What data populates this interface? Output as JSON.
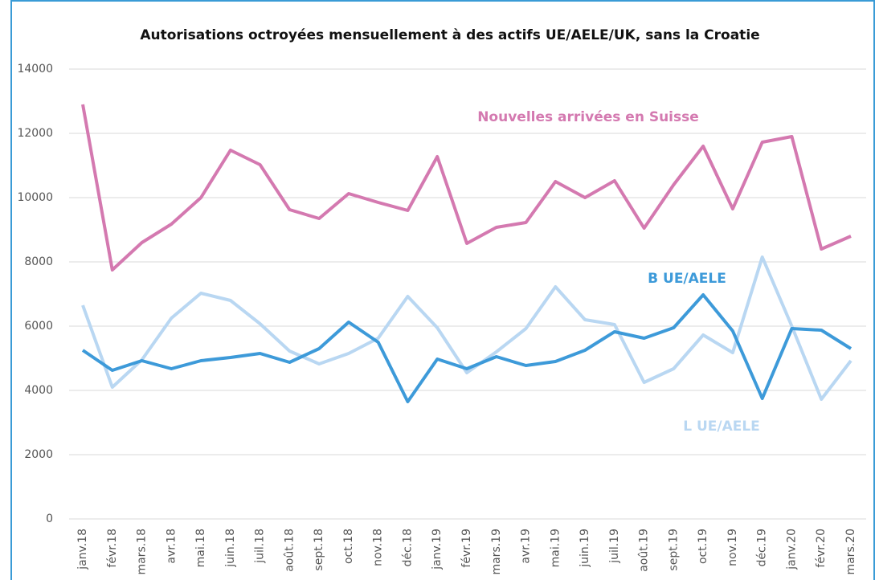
{
  "chart_data": {
    "type": "line",
    "title": "Autorisations octroyées mensuellement à des actifs UE/AELE/UK, sans la Croatie",
    "categories": [
      "janv.18",
      "févr.18",
      "mars.18",
      "avr.18",
      "mai.18",
      "juin.18",
      "juil.18",
      "août.18",
      "sept.18",
      "oct.18",
      "nov.18",
      "déc.18",
      "janv.19",
      "févr.19",
      "mars.19",
      "avr.19",
      "mai.19",
      "juin.19",
      "juil.19",
      "août.19",
      "sept.19",
      "oct.19",
      "nov.19",
      "déc.19",
      "janv.20",
      "févr.20",
      "mars.20"
    ],
    "series": [
      {
        "name": "Nouvelles arrivées en Suisse",
        "color": "#d479b0",
        "values": [
          12900,
          7750,
          8600,
          9175,
          10000,
          11475,
          11025,
          9625,
          9350,
          10125,
          9850,
          9600,
          11275,
          8575,
          9075,
          9225,
          10500,
          10000,
          10525,
          9050,
          10400,
          11600,
          9650,
          11725,
          11900,
          8400,
          8800
        ]
      },
      {
        "name": "B UE/AELE",
        "color": "#3d9ad9",
        "values": [
          5250,
          4625,
          4925,
          4675,
          4925,
          5025,
          5150,
          4875,
          5300,
          6125,
          5500,
          3650,
          4975,
          4675,
          5050,
          4775,
          4900,
          5250,
          5825,
          5625,
          5950,
          6975,
          5850,
          3750,
          5925,
          5875,
          5300
        ]
      },
      {
        "name": "L UE/AELE",
        "color": "#b9d7f2",
        "values": [
          6650,
          4100,
          4950,
          6250,
          7025,
          6800,
          6075,
          5225,
          4825,
          5150,
          5625,
          6925,
          5950,
          4550,
          5200,
          5925,
          7225,
          6200,
          6050,
          4250,
          4675,
          5725,
          5175,
          8150,
          6000,
          3725,
          4925
        ]
      }
    ],
    "ylim": [
      0,
      14000
    ],
    "yticks": [
      0,
      2000,
      4000,
      6000,
      8000,
      10000,
      12000,
      14000
    ],
    "grid": true
  }
}
